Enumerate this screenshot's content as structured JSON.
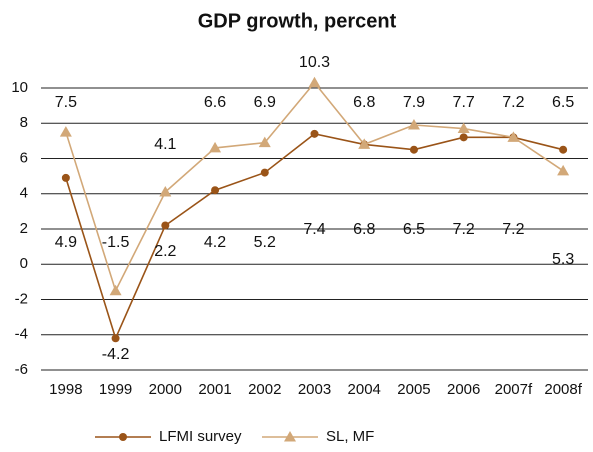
{
  "chart_data": {
    "type": "line",
    "title": "GDP growth, percent",
    "categories": [
      "1998",
      "1999",
      "2000",
      "2001",
      "2002",
      "2003",
      "2004",
      "2005",
      "2006",
      "2007f",
      "2008f"
    ],
    "series": [
      {
        "name": "LFMI survey",
        "color": "#9a5418",
        "marker": "circle",
        "values": [
          4.9,
          -4.2,
          2.2,
          4.2,
          5.2,
          7.4,
          6.8,
          6.5,
          7.2,
          7.2,
          6.5
        ]
      },
      {
        "name": "SL, MF",
        "color": "#d2a878",
        "marker": "triangle",
        "values": [
          7.5,
          -1.5,
          4.1,
          6.6,
          6.9,
          10.3,
          6.8,
          7.9,
          7.7,
          7.2,
          5.3
        ]
      }
    ],
    "ylim": [
      -6,
      10
    ],
    "yticks": [
      -6,
      -4,
      -2,
      0,
      2,
      4,
      6,
      8,
      10
    ],
    "grid": true,
    "legend": "bottom"
  }
}
